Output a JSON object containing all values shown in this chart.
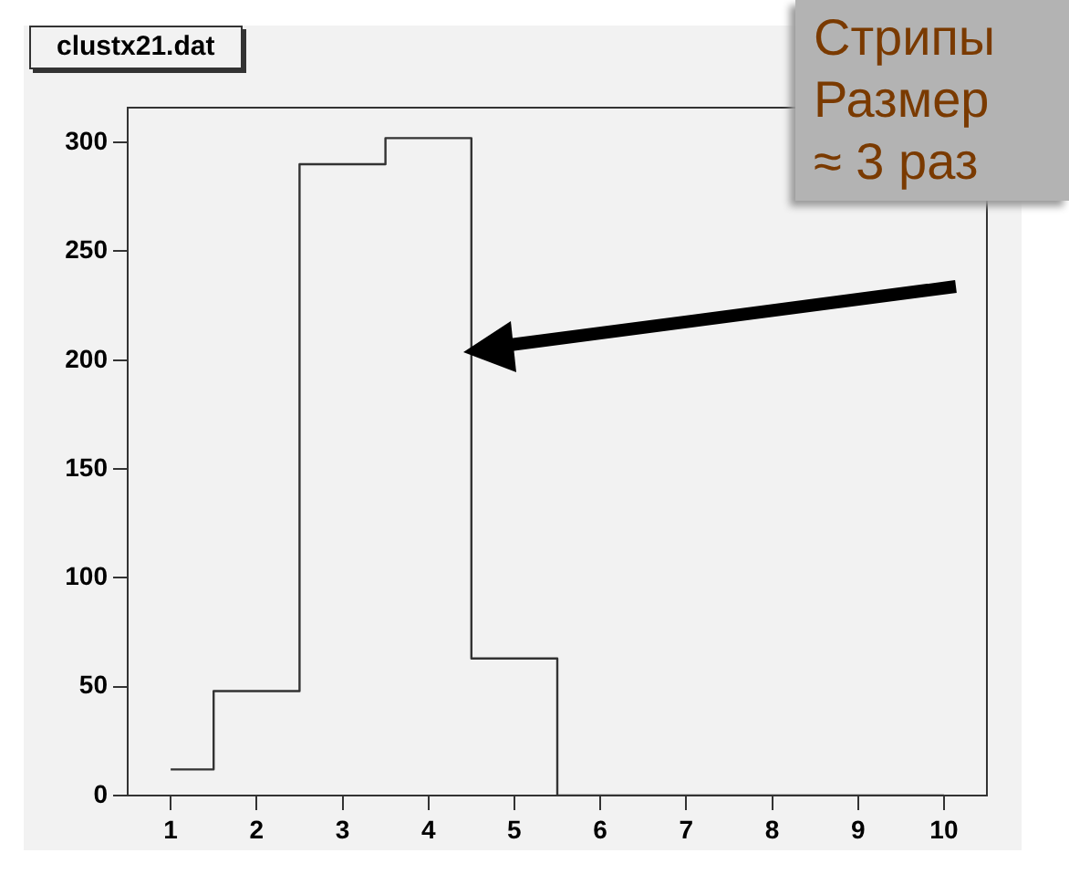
{
  "chart_data": {
    "type": "step",
    "title": "clustx21.dat",
    "x": [
      1,
      2,
      3,
      4,
      5,
      6,
      7,
      8,
      9,
      10
    ],
    "values": [
      12,
      48,
      290,
      302,
      63,
      0,
      0,
      0,
      0,
      0
    ],
    "color": "#333333",
    "xlim": [
      0.5,
      10.5
    ],
    "xticks": [
      1,
      2,
      3,
      4,
      5,
      6,
      7,
      8,
      9,
      10
    ],
    "ylim": [
      0,
      316
    ],
    "yticks": [
      0,
      50,
      100,
      150,
      200,
      250,
      300
    ],
    "grid": false,
    "legend": false,
    "annotations": [
      "Стрипы",
      "Размер",
      "≈ 3 раз"
    ]
  }
}
